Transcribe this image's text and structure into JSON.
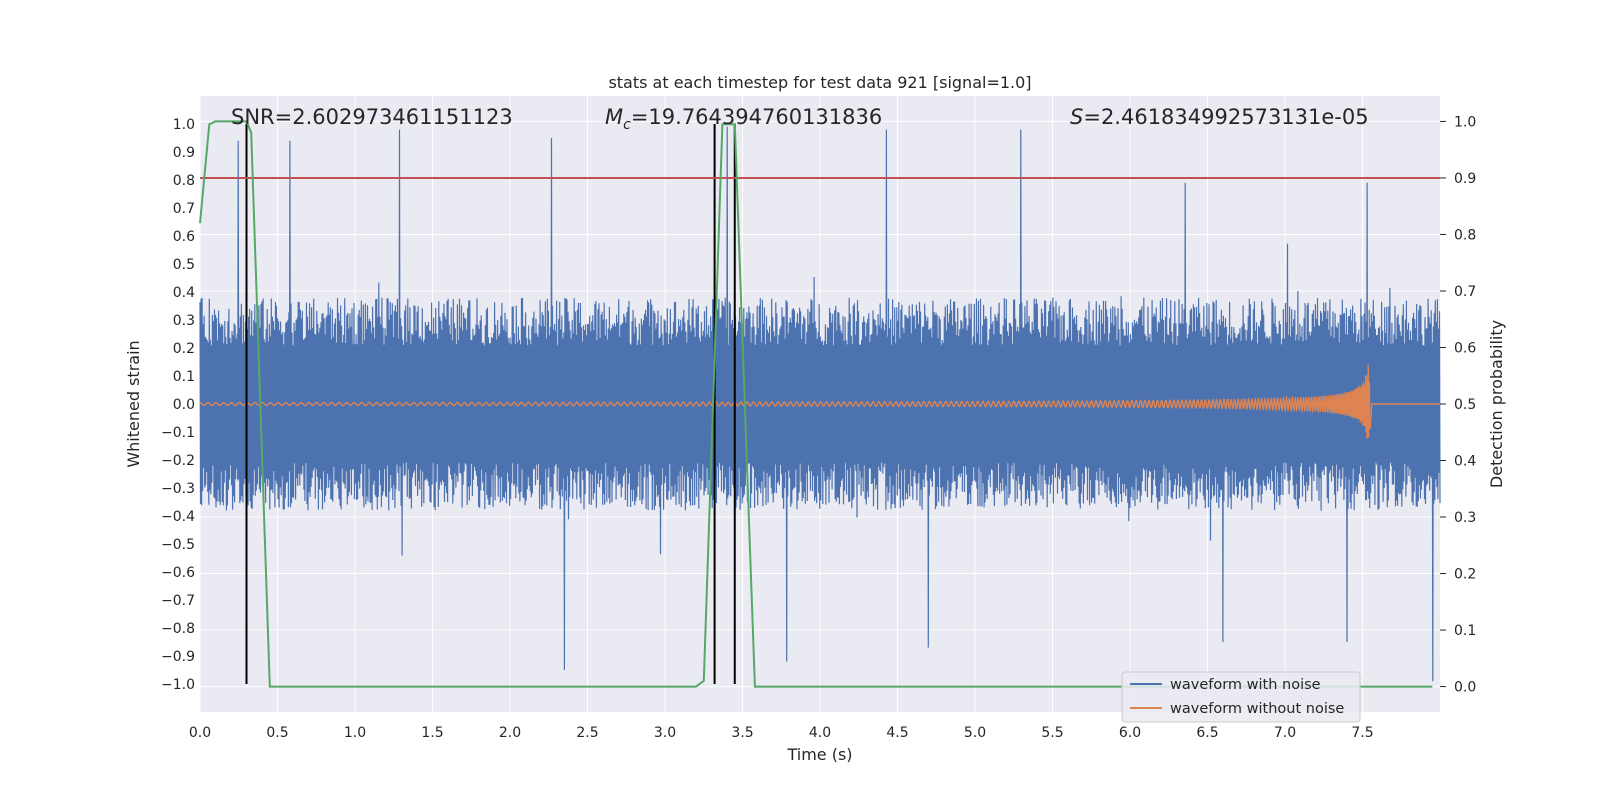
{
  "chart_data": {
    "type": "line",
    "title": "stats at each timestep for test data 921 [signal=1.0]",
    "xlabel": "Time (s)",
    "ylabel": "Whitened strain",
    "y2label": "Detection probability",
    "xlim": [
      0.0,
      8.0
    ],
    "ylim": [
      -1.1,
      1.1
    ],
    "y2lim": [
      -0.045,
      1.045
    ],
    "x_ticks": [
      0.0,
      0.5,
      1.0,
      1.5,
      2.0,
      2.5,
      3.0,
      3.5,
      4.0,
      4.5,
      5.0,
      5.5,
      6.0,
      6.5,
      7.0,
      7.5
    ],
    "y_ticks": [
      -1.0,
      -0.9,
      -0.8,
      -0.7,
      -0.6,
      -0.5,
      -0.4,
      -0.3,
      -0.2,
      -0.1,
      0.0,
      0.1,
      0.2,
      0.3,
      0.4,
      0.5,
      0.6,
      0.7,
      0.8,
      0.9,
      1.0
    ],
    "y2_ticks": [
      0.0,
      0.1,
      0.2,
      0.3,
      0.4,
      0.5,
      0.6,
      0.7,
      0.8,
      0.9,
      1.0
    ],
    "annotations": {
      "snr": "SNR=2.602973461151123",
      "mc": "=19.764394760131836",
      "mc_symbol": "M",
      "mc_sub": "c",
      "s": "=2.461834992573131e-05",
      "s_symbol": "S"
    },
    "threshold": {
      "axis": "right",
      "value": 0.9,
      "color": "#c44e52"
    },
    "vertical_markers": [
      0.3,
      3.32,
      3.45
    ],
    "series": [
      {
        "name": "waveform with noise",
        "color": "#4c72b0",
        "axis": "left",
        "kind": "noise",
        "duration": 8.0,
        "envelope": 0.38,
        "notable_peaks": [
          [
            0.25,
            0.94
          ],
          [
            0.3,
            0.99
          ],
          [
            0.58,
            0.94
          ],
          [
            1.29,
            0.98
          ],
          [
            2.27,
            0.95
          ],
          [
            3.4,
            0.99
          ],
          [
            4.43,
            0.98
          ],
          [
            5.3,
            0.98
          ],
          [
            6.36,
            0.79
          ],
          [
            7.53,
            0.79
          ]
        ],
        "notable_troughs": [
          [
            2.35,
            -0.95
          ],
          [
            3.78,
            -0.92
          ],
          [
            4.7,
            -0.87
          ],
          [
            7.95,
            -0.99
          ],
          [
            6.6,
            -0.85
          ],
          [
            7.4,
            -0.85
          ]
        ]
      },
      {
        "name": "waveform without noise",
        "color": "#dd8452",
        "axis": "left",
        "kind": "chirp",
        "t_start": 0.0,
        "t_merger": 7.55,
        "base_amplitude": 0.005,
        "peak_amplitude": 0.14
      },
      {
        "name": "detection probability",
        "color": "#55a868",
        "axis": "right",
        "x": [
          0.0,
          0.06,
          0.1,
          0.2,
          0.3,
          0.33,
          0.45,
          1.5,
          3.2,
          3.25,
          3.37,
          3.45,
          3.58,
          7.95
        ],
        "y": [
          0.82,
          0.995,
          1.0,
          1.0,
          1.0,
          0.98,
          0.0,
          0.0,
          0.0,
          0.01,
          0.995,
          0.995,
          0.0,
          0.0
        ]
      }
    ],
    "legend": {
      "position": "lower-right",
      "entries": [
        {
          "label": "waveform with noise",
          "color": "#4c72b0"
        },
        {
          "label": "waveform without noise",
          "color": "#dd8452"
        }
      ]
    },
    "colors": {
      "background": "#eaeaf2",
      "grid": "#ffffff",
      "marker": "#000000"
    }
  }
}
